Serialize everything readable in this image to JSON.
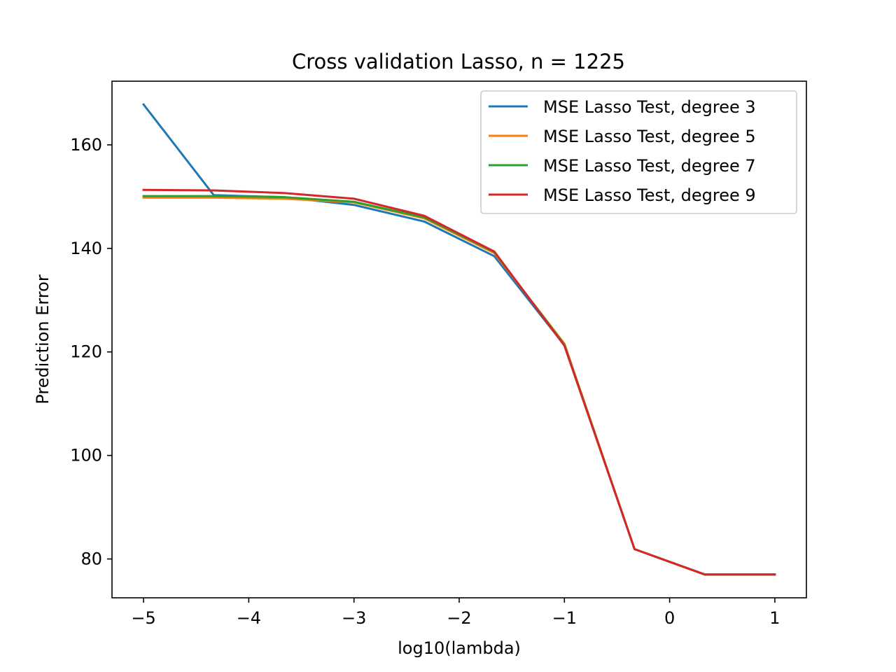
{
  "chart_data": {
    "type": "line",
    "title": "Cross validation Lasso, n = 1225",
    "xlabel": "log10(lambda)",
    "ylabel": "Prediction Error",
    "xlim": [
      -5.3,
      1.3
    ],
    "ylim": [
      72.5,
      172.3
    ],
    "xticks": [
      -5,
      -4,
      -3,
      -2,
      -1,
      0,
      1
    ],
    "xtick_labels": [
      "−5",
      "−4",
      "−3",
      "−2",
      "−1",
      "0",
      "1"
    ],
    "yticks": [
      80,
      100,
      120,
      140,
      160
    ],
    "ytick_labels": [
      "80",
      "100",
      "120",
      "140",
      "160"
    ],
    "grid": false,
    "legend_position": "upper right",
    "x": [
      -5,
      -4.3333,
      -3.6667,
      -3,
      -2.3333,
      -1.6667,
      -1,
      -0.3333,
      0.3333,
      1
    ],
    "series": [
      {
        "name": "MSE Lasso Test, degree 3",
        "color": "#1f77b4",
        "values": [
          167.8,
          150.3,
          149.9,
          148.4,
          145.2,
          138.5,
          121.3,
          81.9,
          77.0,
          77.0
        ]
      },
      {
        "name": "MSE Lasso Test, degree 5",
        "color": "#ff7f0e",
        "values": [
          149.8,
          149.8,
          149.6,
          148.9,
          145.8,
          139.1,
          121.6,
          81.9,
          77.0,
          77.0
        ]
      },
      {
        "name": "MSE Lasso Test, degree 7",
        "color": "#2ca02c",
        "values": [
          150.1,
          150.1,
          149.9,
          149.0,
          146.0,
          139.3,
          121.4,
          81.9,
          77.0,
          77.0
        ]
      },
      {
        "name": "MSE Lasso Test, degree 9",
        "color": "#d62728",
        "values": [
          151.3,
          151.2,
          150.7,
          149.6,
          146.3,
          139.4,
          121.2,
          81.9,
          77.0,
          77.0
        ]
      }
    ]
  }
}
